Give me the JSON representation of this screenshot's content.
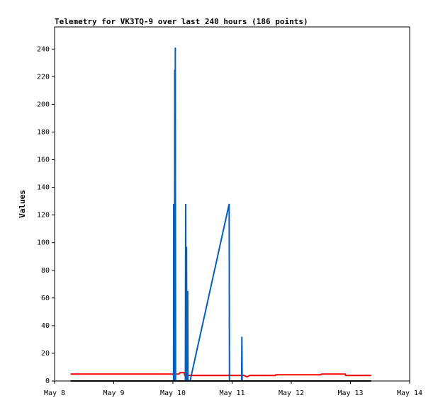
{
  "chart_data": {
    "type": "line",
    "title": "Telemetry for VK3TQ-9 over last 240 hours (186 points)",
    "y_label": "Values",
    "xlim": [
      8,
      14
    ],
    "xticks": [
      {
        "value": 8,
        "label": "May 8"
      },
      {
        "value": 9,
        "label": "May 9"
      },
      {
        "value": 10,
        "label": "May 10"
      },
      {
        "value": 11,
        "label": "May 11"
      },
      {
        "value": 12,
        "label": "May 12"
      },
      {
        "value": 13,
        "label": "May 13"
      },
      {
        "value": 14,
        "label": "May 14"
      }
    ],
    "ylim": [
      0,
      256
    ],
    "yticks": [
      0,
      20,
      40,
      60,
      80,
      100,
      120,
      140,
      160,
      180,
      200,
      220,
      240
    ],
    "series": [
      {
        "color": "#ff0000",
        "x": [
          8.27,
          10.1,
          10.12,
          10.19,
          10.2,
          11.2,
          11.25,
          11.3,
          11.73,
          11.74,
          12.5,
          12.51,
          12.91,
          12.92,
          13.35
        ],
        "values": [
          5,
          5,
          6,
          6,
          4,
          4,
          3,
          4,
          4,
          4.5,
          4.5,
          5,
          5,
          4,
          4
        ]
      },
      {
        "color": "#0060c0",
        "x": [
          10.01,
          10.012,
          10.015,
          10.02,
          10.025,
          10.03,
          10.035,
          10.04,
          10.045,
          10.21,
          10.215,
          10.22,
          10.23,
          10.235,
          10.25,
          10.255,
          10.29,
          10.95,
          10.955,
          11.16,
          11.165,
          11.17
        ],
        "values": [
          0,
          128,
          0,
          128,
          0,
          225,
          0,
          241,
          0,
          0,
          128,
          0,
          97,
          0,
          65,
          0,
          0,
          128,
          0,
          0,
          32,
          0
        ]
      },
      {
        "color": "#000000",
        "x": [
          8.27,
          13.35
        ],
        "values": [
          0,
          0
        ]
      }
    ]
  }
}
